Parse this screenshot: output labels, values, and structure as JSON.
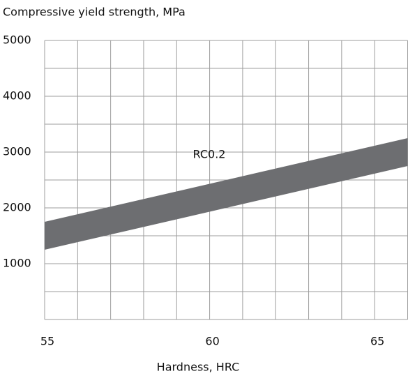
{
  "chart_data": {
    "type": "band",
    "title": "Compressive yield strength, MPa",
    "xlabel": "Hardness, HRC",
    "xlim": [
      55,
      66
    ],
    "xticks": [
      55,
      60,
      65
    ],
    "xminor": [
      56,
      57,
      58,
      59,
      61,
      62,
      63,
      64,
      66
    ],
    "ylim": [
      0,
      5000
    ],
    "yticks": [
      1000,
      2000,
      3000,
      4000,
      5000
    ],
    "yminor": [
      500,
      1500,
      2500,
      3500,
      4500
    ],
    "grid": true,
    "bands": [
      {
        "label": "RC0.2",
        "color": "#6d6e71",
        "x": [
          55,
          66
        ],
        "lower": [
          1250,
          2750
        ],
        "upper": [
          1750,
          3250
        ]
      }
    ]
  }
}
